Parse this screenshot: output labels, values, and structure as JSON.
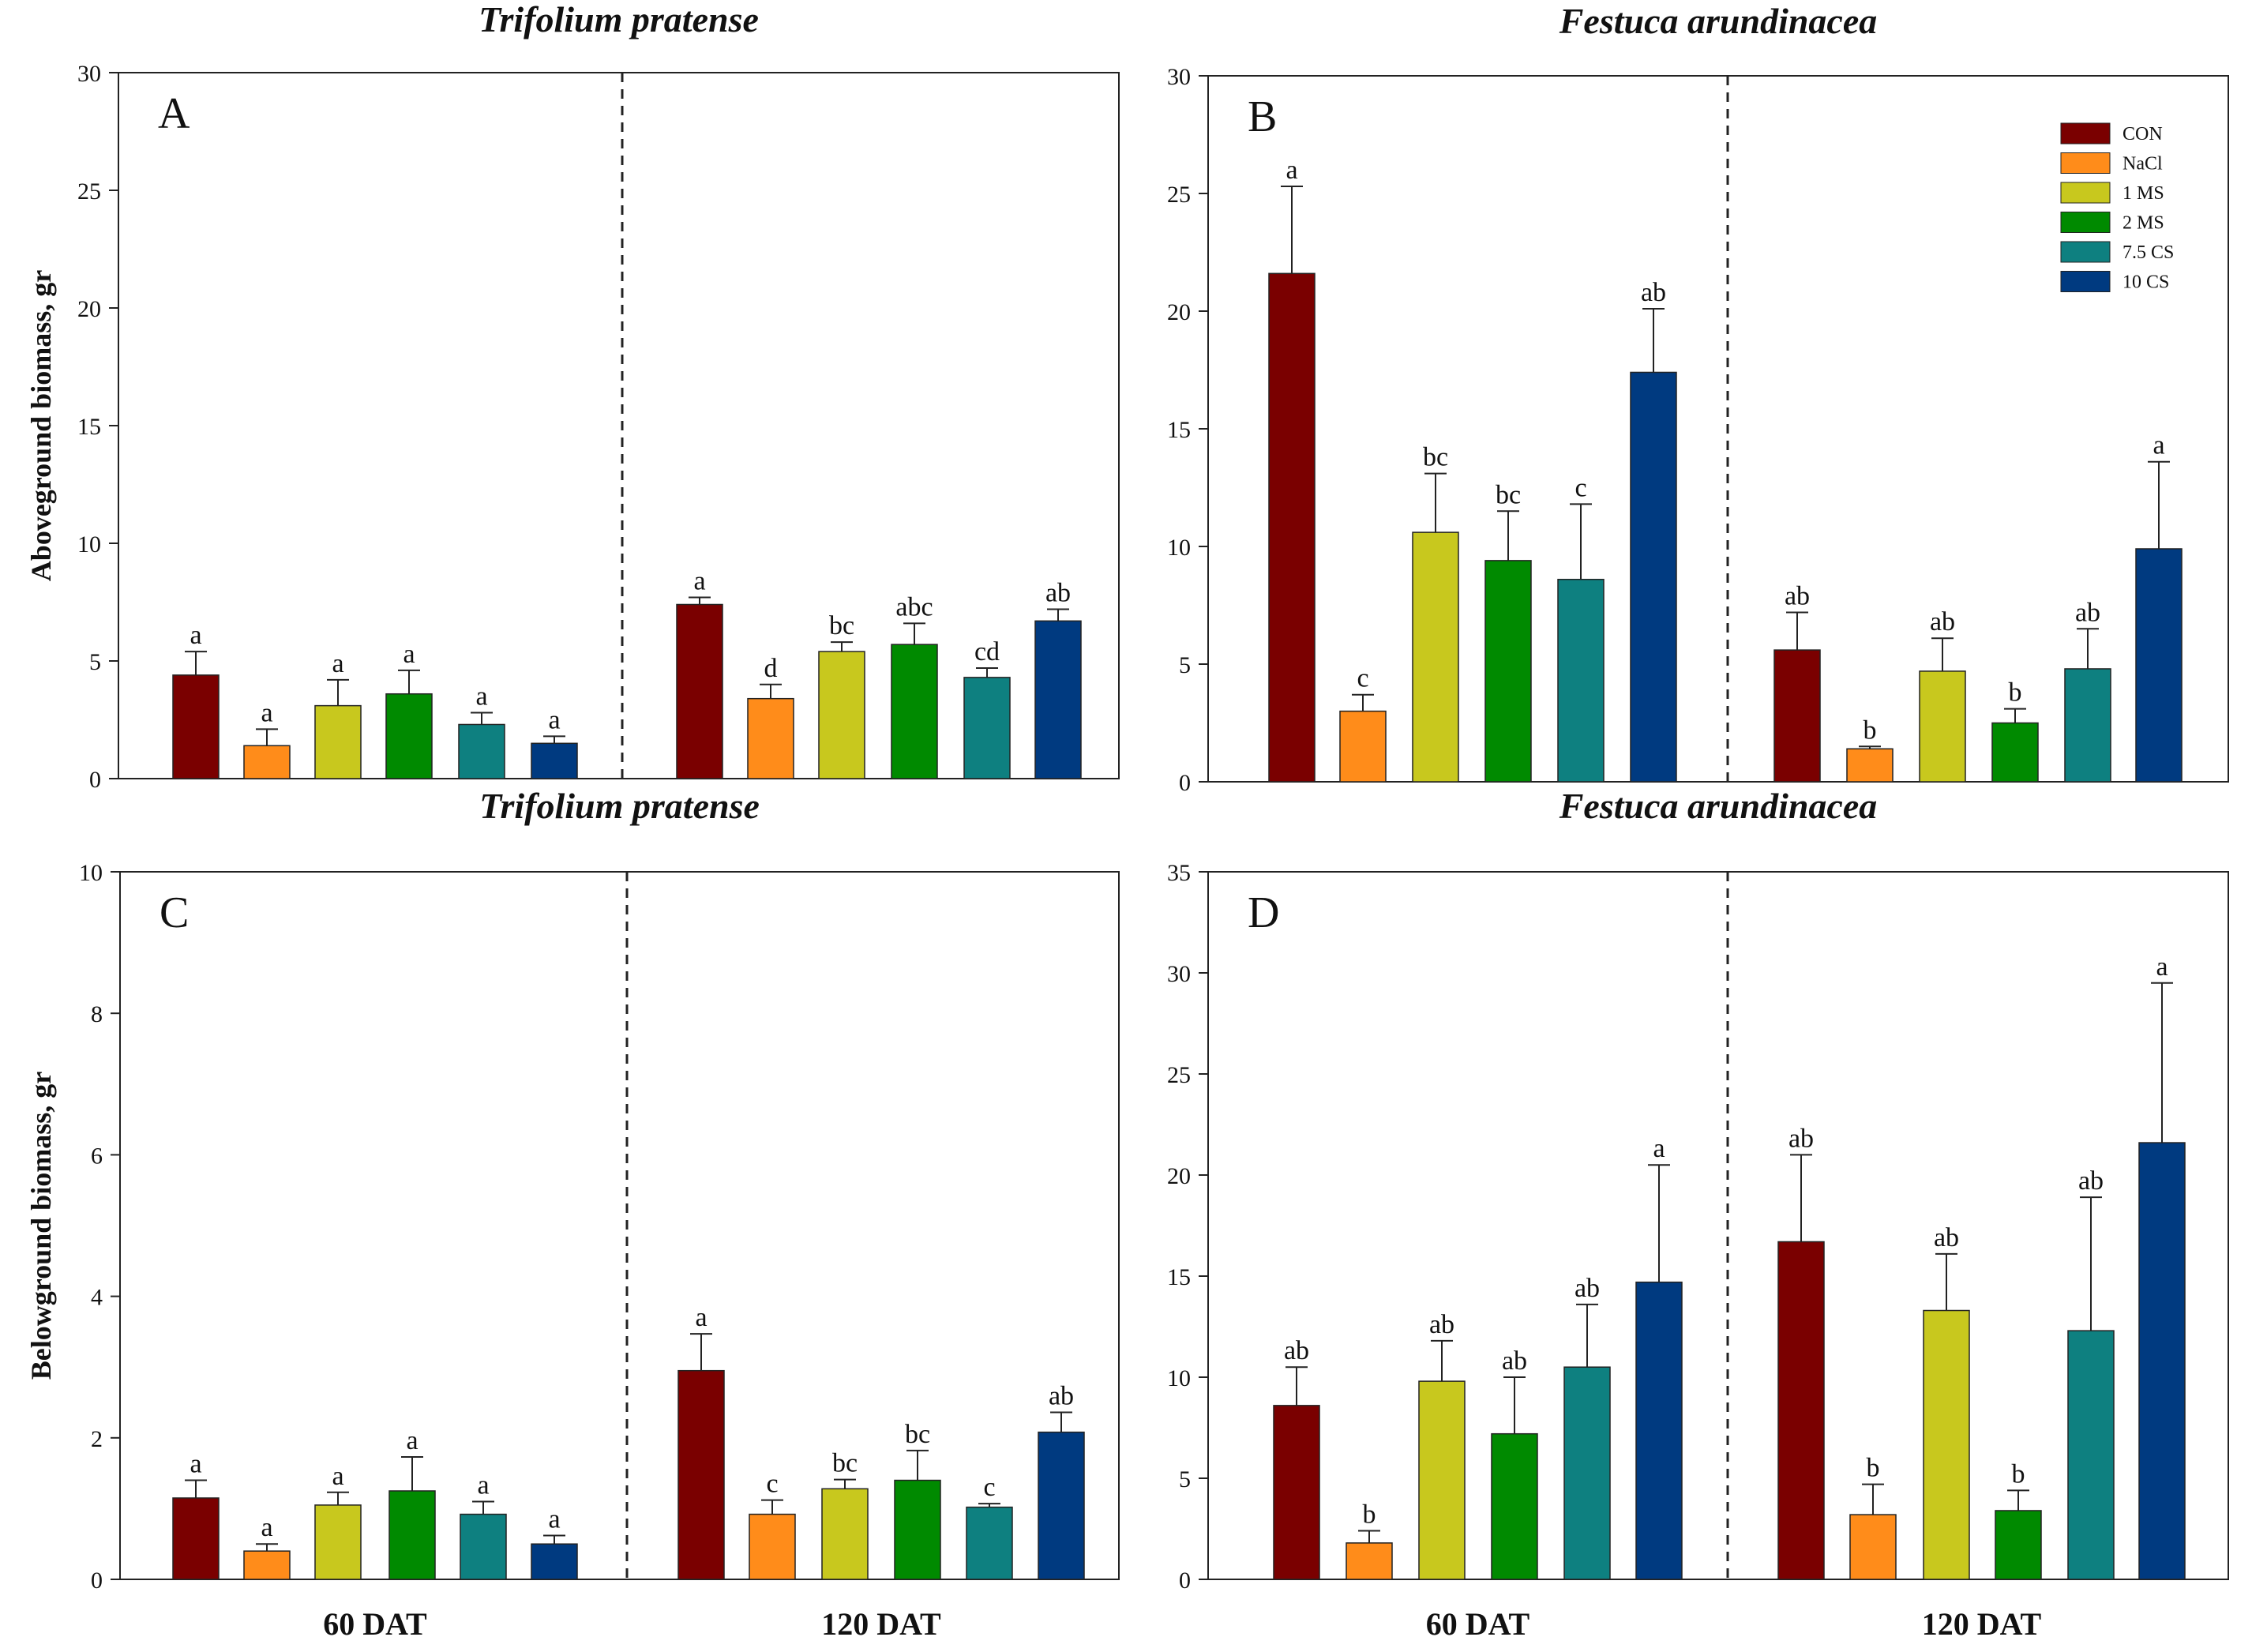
{
  "chart_data": [
    {
      "type": "bar",
      "panel": "A",
      "title": "Trifolium pratense",
      "ylabel": "Aboveground biomass, gr",
      "xlabel": "",
      "ylim": [
        0,
        30
      ],
      "yticks": [
        0,
        5,
        10,
        15,
        20,
        25,
        30
      ],
      "groups": [
        {
          "label": "",
          "values": [
            4.4,
            1.4,
            3.1,
            3.6,
            2.3,
            1.5
          ],
          "errors": [
            1.0,
            0.7,
            1.1,
            1.0,
            0.5,
            0.3
          ],
          "letters": [
            "a",
            "a",
            "a",
            "a",
            "a",
            "a"
          ]
        },
        {
          "label": "",
          "values": [
            7.4,
            3.4,
            5.4,
            5.7,
            4.3,
            6.7
          ],
          "errors": [
            0.3,
            0.6,
            0.4,
            0.9,
            0.4,
            0.5
          ],
          "letters": [
            "a",
            "d",
            "bc",
            "abc",
            "cd",
            "ab"
          ]
        }
      ]
    },
    {
      "type": "bar",
      "panel": "B",
      "title": "Festuca arundinacea",
      "ylabel": "",
      "xlabel": "",
      "ylim": [
        0,
        30
      ],
      "yticks": [
        0,
        5,
        10,
        15,
        20,
        25,
        30
      ],
      "groups": [
        {
          "label": "",
          "values": [
            21.6,
            3.0,
            10.6,
            9.4,
            8.6,
            17.4
          ],
          "errors": [
            3.7,
            0.7,
            2.5,
            2.1,
            3.2,
            2.7
          ],
          "letters": [
            "a",
            "c",
            "bc",
            "bc",
            "c",
            "ab"
          ]
        },
        {
          "label": "",
          "values": [
            5.6,
            1.4,
            4.7,
            2.5,
            4.8,
            9.9
          ],
          "errors": [
            1.6,
            0.1,
            1.4,
            0.6,
            1.7,
            3.7
          ],
          "letters": [
            "ab",
            "b",
            "ab",
            "b",
            "ab",
            "a"
          ]
        }
      ]
    },
    {
      "type": "bar",
      "panel": "C",
      "title": "Trifolium pratense",
      "ylabel": "Belowground biomass, gr",
      "xlabel": "",
      "ylim": [
        0,
        10
      ],
      "yticks": [
        0,
        2,
        4,
        6,
        8,
        10
      ],
      "groups": [
        {
          "label": "60 DAT",
          "values": [
            1.15,
            0.4,
            1.05,
            1.25,
            0.92,
            0.5
          ],
          "errors": [
            0.25,
            0.1,
            0.18,
            0.48,
            0.18,
            0.12
          ],
          "letters": [
            "a",
            "a",
            "a",
            "a",
            "a",
            "a"
          ]
        },
        {
          "label": "120 DAT",
          "values": [
            2.95,
            0.92,
            1.28,
            1.4,
            1.02,
            2.08
          ],
          "errors": [
            0.52,
            0.2,
            0.13,
            0.42,
            0.05,
            0.28
          ],
          "letters": [
            "a",
            "c",
            "bc",
            "bc",
            "c",
            "ab"
          ]
        }
      ]
    },
    {
      "type": "bar",
      "panel": "D",
      "title": "Festuca arundinacea",
      "ylabel": "",
      "xlabel": "",
      "ylim": [
        0,
        35
      ],
      "yticks": [
        0,
        5,
        10,
        15,
        20,
        25,
        30,
        35
      ],
      "groups": [
        {
          "label": "60 DAT",
          "values": [
            8.6,
            1.8,
            9.8,
            7.2,
            10.5,
            14.7
          ],
          "errors": [
            1.9,
            0.6,
            2.0,
            2.8,
            3.1,
            5.8
          ],
          "letters": [
            "ab",
            "b",
            "ab",
            "ab",
            "ab",
            "a"
          ]
        },
        {
          "label": "120 DAT",
          "values": [
            16.7,
            3.2,
            13.3,
            3.4,
            12.3,
            21.6
          ],
          "errors": [
            4.3,
            1.5,
            2.8,
            1.0,
            6.6,
            7.9
          ],
          "letters": [
            "ab",
            "b",
            "ab",
            "b",
            "ab",
            "a"
          ]
        }
      ]
    }
  ],
  "legend": {
    "position": "top-right of panel B",
    "entries": [
      {
        "label": "CON",
        "color": "#7a0000"
      },
      {
        "label": "NaCl",
        "color": "#ff8c1a"
      },
      {
        "label": "1 MS",
        "color": "#c8c81e"
      },
      {
        "label": "2 MS",
        "color": "#008a00"
      },
      {
        "label": "7.5 CS",
        "color": "#0e8080"
      },
      {
        "label": "10 CS",
        "color": "#003a80"
      }
    ]
  }
}
